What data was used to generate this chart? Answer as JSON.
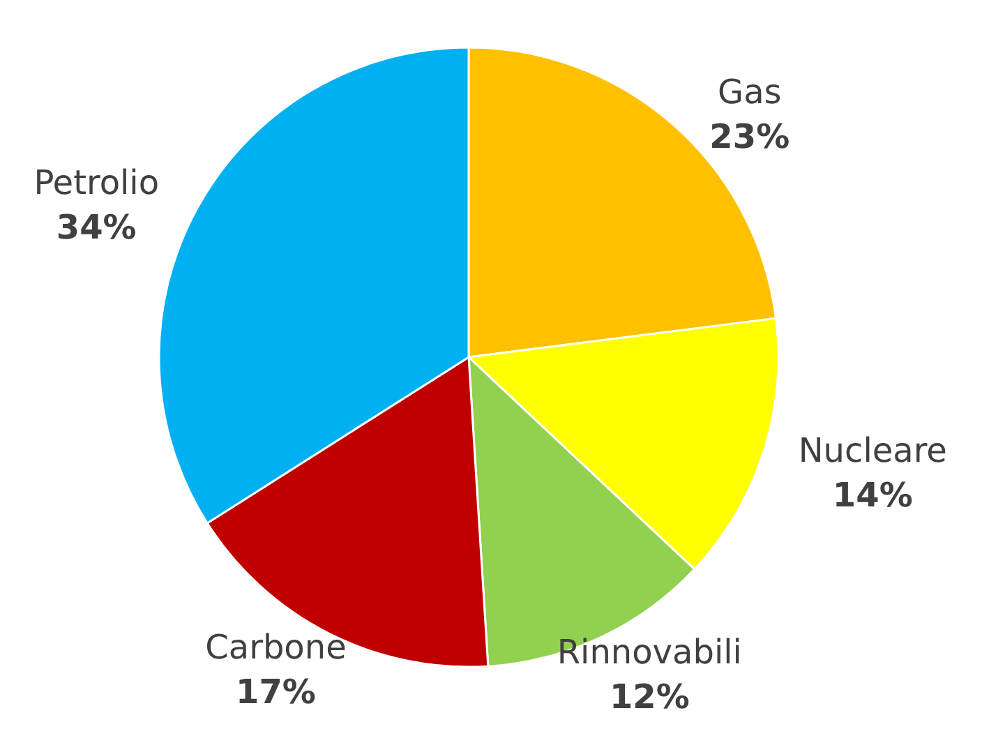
{
  "chart_data": {
    "type": "pie",
    "categories": [
      "Gas",
      "Nucleare",
      "Rinnovabili",
      "Carbone",
      "Petrolio"
    ],
    "values": [
      23,
      14,
      12,
      17,
      34
    ],
    "colors": [
      "#ffc000",
      "#ffff00",
      "#92d050",
      "#c00000",
      "#00b0f0"
    ],
    "value_labels": [
      "23%",
      "14%",
      "12%",
      "17%",
      "34%"
    ]
  }
}
